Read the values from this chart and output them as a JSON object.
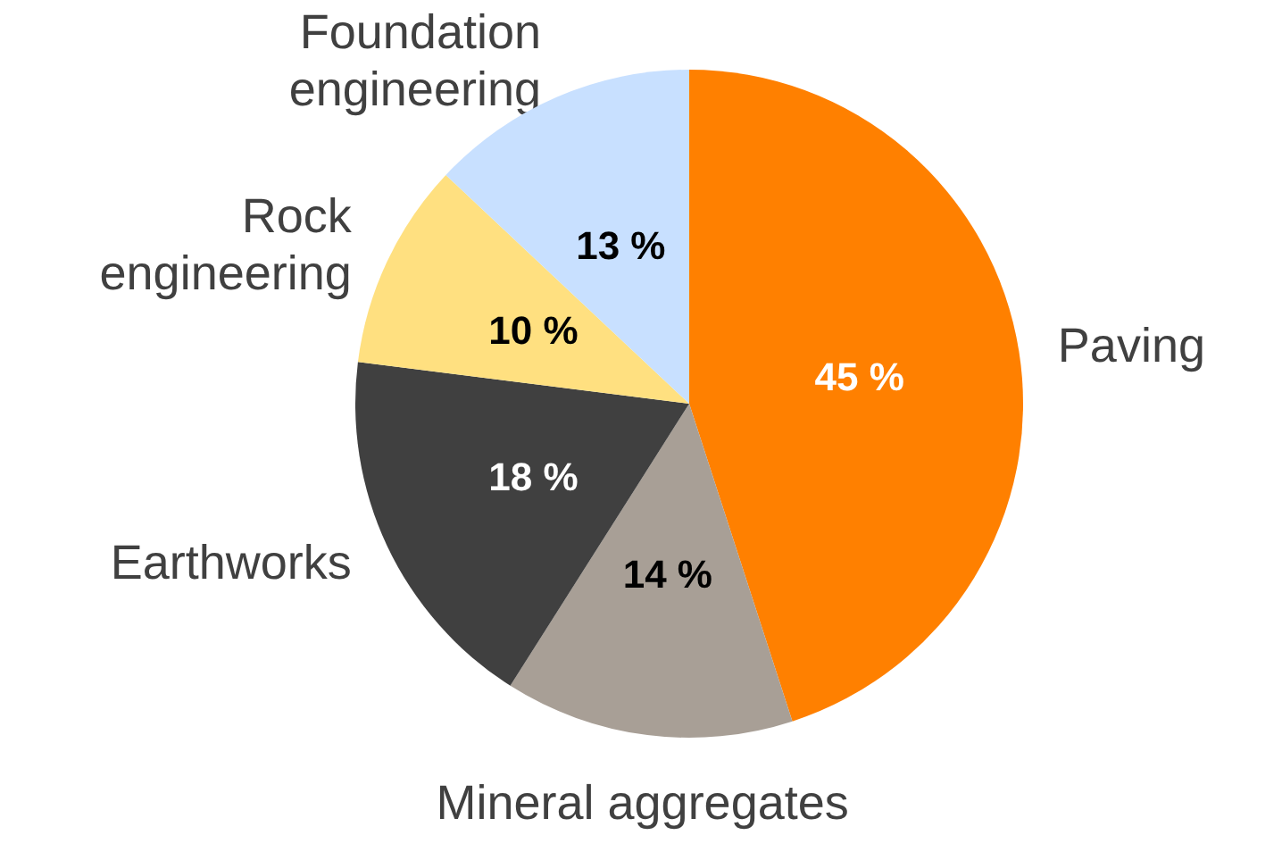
{
  "chart_data": {
    "type": "pie",
    "categories": [
      "Paving",
      "Mineral aggregates",
      "Earthworks",
      "Rock engineering",
      "Foundation engineering"
    ],
    "values": [
      45,
      14,
      18,
      10,
      13
    ],
    "colors": [
      "#ff8000",
      "#a89f96",
      "#404040",
      "#ffe080",
      "#c8e0ff"
    ],
    "value_labels": [
      "45 %",
      "14 %",
      "18 %",
      "10 %",
      "13 %"
    ],
    "legend": false
  }
}
